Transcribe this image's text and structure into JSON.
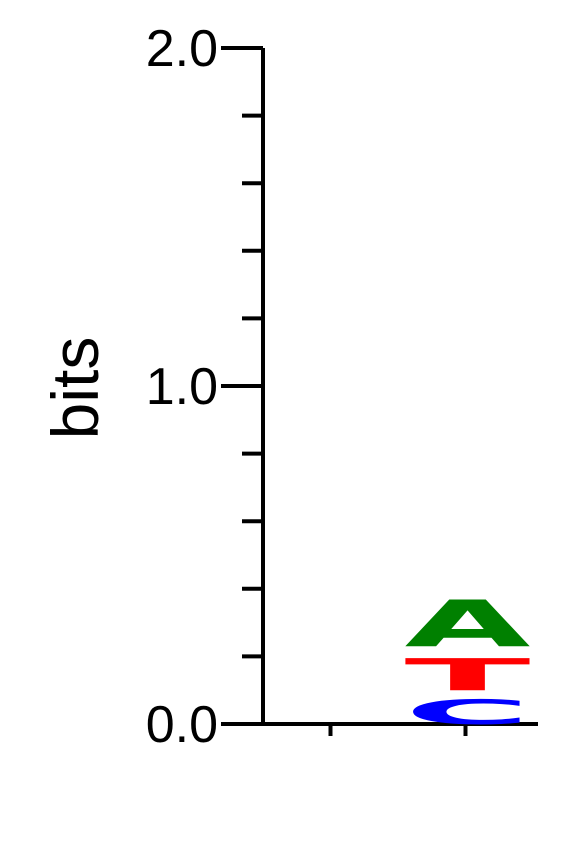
{
  "chart_data": {
    "type": "sequence-logo",
    "ylabel": "bits",
    "ylim": [
      0,
      2.0
    ],
    "y_tick_labels": [
      "0.0",
      "1.0",
      "2.0"
    ],
    "y_minor_step": 0.2,
    "positions": [
      {
        "position": 1,
        "letters": []
      },
      {
        "position": 2,
        "letters": [
          {
            "letter": "C",
            "height": 0.1,
            "color": "#0000ff"
          },
          {
            "letter": "T",
            "height": 0.13,
            "color": "#ff0000"
          },
          {
            "letter": "A",
            "height": 0.19,
            "color": "#008000"
          }
        ]
      }
    ]
  }
}
